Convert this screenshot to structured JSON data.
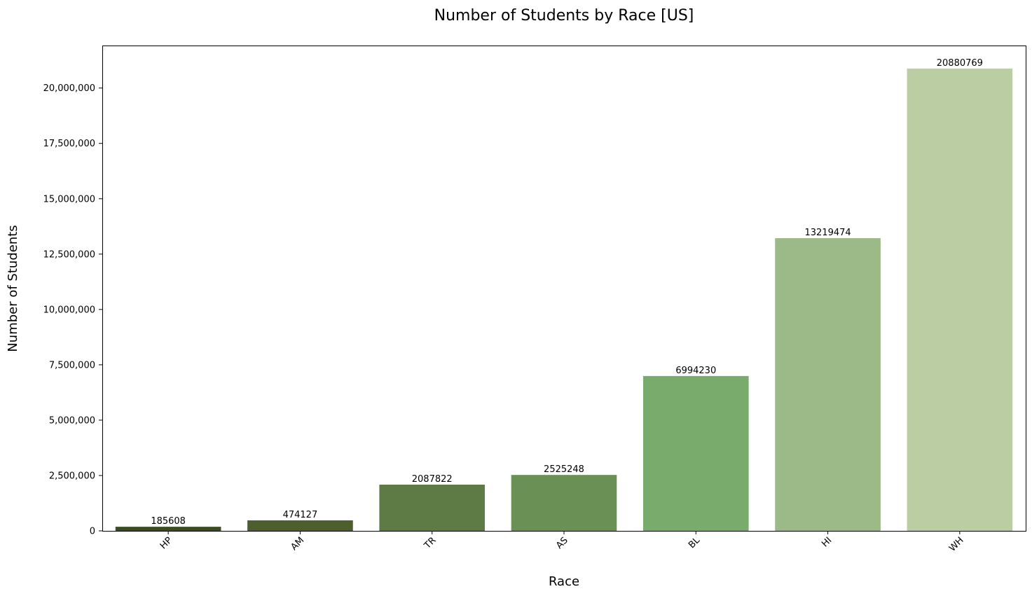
{
  "chart_data": {
    "type": "bar",
    "title": "Number of Students by Race [US]",
    "xlabel": "Race",
    "ylabel": "Number of Students",
    "categories": [
      "HP",
      "AM",
      "TR",
      "AS",
      "BL",
      "HI",
      "WH"
    ],
    "values": [
      185608,
      474127,
      2087822,
      2525248,
      6994230,
      13219474,
      20880769
    ],
    "data_labels": [
      "185608",
      "474127",
      "2087822",
      "2525248",
      "6994230",
      "13219474",
      "20880769"
    ],
    "colors": [
      "#3a4d21",
      "#4c5f2d",
      "#5e7a45",
      "#6b9055",
      "#79ab6d",
      "#9bba87",
      "#bacda3"
    ],
    "yticks": [
      0,
      2500000,
      5000000,
      7500000,
      10000000,
      12500000,
      15000000,
      17500000,
      20000000
    ],
    "ytick_labels": [
      "0",
      "2,500,000",
      "5,000,000",
      "7,500,000",
      "10,000,000",
      "12,500,000",
      "15,000,000",
      "17,500,000",
      "20,000,000"
    ],
    "ylim": [
      0,
      21920000
    ],
    "grid": false,
    "xtick_rotation": "45 degrees"
  }
}
